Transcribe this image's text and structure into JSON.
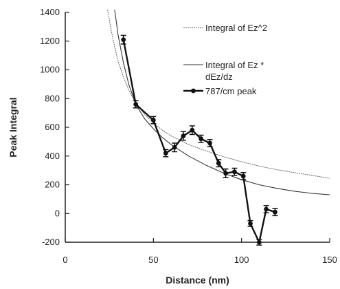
{
  "chart_data": {
    "type": "line",
    "title": "",
    "xlabel": "Distance (nm)",
    "ylabel": "Peak Integral",
    "xlim": [
      0,
      150
    ],
    "ylim": [
      -200,
      1400
    ],
    "xticks": [
      "0",
      "50",
      "100",
      "150"
    ],
    "yticks": [
      "-200",
      "0",
      "200",
      "400",
      "600",
      "800",
      "1000",
      "1200",
      "1400"
    ],
    "grid": false,
    "legend_position": "top-right",
    "series": [
      {
        "name": "Integral of Ez^2",
        "style": "thin-dashed",
        "color": "#666666",
        "x": [
          24,
          26,
          28,
          30,
          33,
          36,
          40,
          45,
          50,
          55,
          60,
          70,
          80,
          90,
          100,
          110,
          120,
          130,
          140,
          150
        ],
        "y": [
          1420,
          1280,
          1160,
          1060,
          950,
          860,
          770,
          690,
          630,
          580,
          540,
          480,
          435,
          395,
          360,
          330,
          305,
          285,
          265,
          245
        ]
      },
      {
        "name": "Integral of Ez * dEz/dz",
        "name_lines": [
          "Integral of Ez *",
          "dEz/dz"
        ],
        "style": "thin-solid",
        "color": "#333333",
        "x": [
          28,
          30,
          33,
          36,
          40,
          45,
          50,
          55,
          60,
          70,
          80,
          90,
          100,
          110,
          120,
          130,
          140,
          150
        ],
        "y": [
          1420,
          1240,
          1050,
          900,
          760,
          660,
          590,
          530,
          480,
          400,
          335,
          280,
          235,
          200,
          175,
          155,
          140,
          130
        ]
      },
      {
        "name": "787/cm peak",
        "style": "thick-markers",
        "color": "#111111",
        "x": [
          33,
          40,
          50,
          57,
          62,
          67,
          72,
          77,
          82,
          87,
          91,
          96,
          101,
          105,
          110,
          114,
          119
        ],
        "y": [
          1210,
          760,
          650,
          420,
          460,
          540,
          580,
          520,
          490,
          350,
          280,
          290,
          260,
          -70,
          -200,
          30,
          10
        ],
        "err": [
          30,
          25,
          25,
          25,
          30,
          30,
          30,
          25,
          25,
          25,
          30,
          25,
          25,
          20,
          20,
          25,
          25
        ]
      }
    ]
  }
}
